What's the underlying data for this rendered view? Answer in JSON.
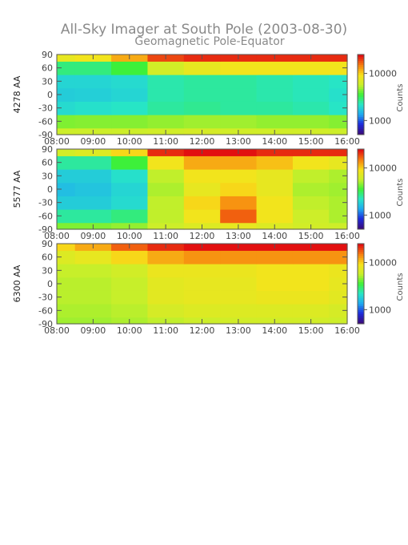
{
  "figure": {
    "title": "All-Sky Imager at South Pole (2003-08-30)",
    "subtitle": "Geomagnetic Pole-Equator"
  },
  "colors": {
    "colormap": [
      "#3a0a7a",
      "#1d2bdc",
      "#1fa9f0",
      "#27e5c8",
      "#3df03a",
      "#c9ef2a",
      "#f7e21a",
      "#f7820f",
      "#e21010"
    ],
    "axis": "#555555",
    "text": "#8a8a8a"
  },
  "chart_data": [
    {
      "type": "heatmap",
      "ylabel": "4278 AA",
      "x_tick_labels": [
        "08:00",
        "09:00",
        "10:00",
        "11:00",
        "12:00",
        "13:00",
        "14:00",
        "15:00",
        "16:00"
      ],
      "y_tick_labels": [
        "90",
        "60",
        "30",
        "0",
        "-30",
        "-60",
        "-90"
      ],
      "xlim": [
        "08:00",
        "16:00"
      ],
      "ylim": [
        -90,
        90
      ],
      "colorbar": {
        "label": "Counts",
        "ticks": [
          "10000",
          "1000"
        ],
        "scale": "log"
      },
      "x_hours": [
        8,
        9,
        10,
        11,
        12,
        13,
        14,
        15,
        16
      ],
      "y_lat": [
        -90,
        -60,
        -30,
        0,
        30,
        60,
        90
      ],
      "intensity_log10": [
        [
          3.78,
          3.78,
          3.78,
          3.8,
          3.82,
          3.8,
          3.8,
          3.8,
          3.78
        ],
        [
          3.65,
          3.66,
          3.66,
          3.68,
          3.7,
          3.7,
          3.68,
          3.68,
          3.66
        ],
        [
          3.3,
          3.32,
          3.34,
          3.4,
          3.42,
          3.4,
          3.4,
          3.38,
          3.34
        ],
        [
          3.25,
          3.26,
          3.28,
          3.38,
          3.4,
          3.4,
          3.38,
          3.36,
          3.32
        ],
        [
          3.28,
          3.28,
          3.3,
          3.38,
          3.4,
          3.4,
          3.38,
          3.36,
          3.34
        ],
        [
          3.45,
          3.45,
          3.55,
          3.8,
          3.9,
          3.95,
          3.95,
          3.95,
          3.95
        ],
        [
          3.9,
          3.95,
          4.1,
          4.3,
          4.35,
          4.35,
          4.35,
          4.35,
          4.35
        ]
      ]
    },
    {
      "type": "heatmap",
      "ylabel": "5577 AA",
      "x_tick_labels": [
        "08:00",
        "09:00",
        "10:00",
        "11:00",
        "12:00",
        "13:00",
        "14:00",
        "15:00",
        "16:00"
      ],
      "y_tick_labels": [
        "90",
        "60",
        "30",
        "0",
        "-30",
        "-60",
        "-90"
      ],
      "xlim": [
        "08:00",
        "16:00"
      ],
      "ylim": [
        -90,
        90
      ],
      "colorbar": {
        "label": "Counts",
        "ticks": [
          "10000",
          "1000"
        ],
        "scale": "log"
      },
      "x_hours": [
        8,
        9,
        10,
        11,
        12,
        13,
        14,
        15,
        16
      ],
      "y_lat": [
        -90,
        -60,
        -30,
        0,
        30,
        60,
        90
      ],
      "intensity_log10": [
        [
          3.65,
          3.65,
          3.68,
          3.78,
          3.85,
          3.9,
          3.85,
          3.8,
          3.78
        ],
        [
          3.4,
          3.4,
          3.45,
          3.75,
          3.95,
          4.25,
          3.95,
          3.78,
          3.72
        ],
        [
          3.25,
          3.25,
          3.3,
          3.75,
          4.0,
          4.15,
          3.95,
          3.75,
          3.72
        ],
        [
          3.2,
          3.22,
          3.28,
          3.72,
          3.9,
          4.0,
          3.9,
          3.72,
          3.7
        ],
        [
          3.25,
          3.25,
          3.32,
          3.75,
          3.95,
          3.95,
          3.9,
          3.75,
          3.72
        ],
        [
          3.4,
          3.4,
          3.55,
          3.95,
          4.1,
          4.1,
          4.05,
          3.95,
          3.9
        ],
        [
          3.8,
          3.85,
          4.0,
          4.35,
          4.4,
          4.4,
          4.35,
          4.35,
          4.35
        ]
      ]
    },
    {
      "type": "heatmap",
      "ylabel": "6300 AA",
      "x_tick_labels": [
        "08:00",
        "09:00",
        "10:00",
        "11:00",
        "12:00",
        "13:00",
        "14:00",
        "15:00",
        "16:00"
      ],
      "y_tick_labels": [
        "90",
        "60",
        "30",
        "0",
        "-30",
        "-60",
        "-90"
      ],
      "xlim": [
        "08:00",
        "16:00"
      ],
      "ylim": [
        -90,
        90
      ],
      "colorbar": {
        "label": "Counts",
        "ticks": [
          "10000",
          "1000"
        ],
        "scale": "log"
      },
      "x_hours": [
        8,
        9,
        10,
        11,
        12,
        13,
        14,
        15,
        16
      ],
      "y_lat": [
        -90,
        -60,
        -30,
        0,
        30,
        60,
        90
      ],
      "intensity_log10": [
        [
          3.7,
          3.7,
          3.72,
          3.75,
          3.78,
          3.8,
          3.8,
          3.8,
          3.78
        ],
        [
          3.72,
          3.72,
          3.74,
          3.82,
          3.85,
          3.85,
          3.85,
          3.85,
          3.82
        ],
        [
          3.74,
          3.74,
          3.76,
          3.88,
          3.9,
          3.9,
          3.92,
          3.92,
          3.88
        ],
        [
          3.74,
          3.74,
          3.76,
          3.88,
          3.9,
          3.9,
          3.95,
          3.95,
          3.9
        ],
        [
          3.76,
          3.76,
          3.8,
          3.92,
          3.92,
          3.92,
          3.95,
          3.95,
          3.92
        ],
        [
          3.85,
          3.9,
          4.0,
          4.1,
          4.15,
          4.15,
          4.15,
          4.15,
          4.15
        ],
        [
          4.0,
          4.1,
          4.25,
          4.35,
          4.4,
          4.4,
          4.4,
          4.4,
          4.4
        ]
      ]
    }
  ]
}
